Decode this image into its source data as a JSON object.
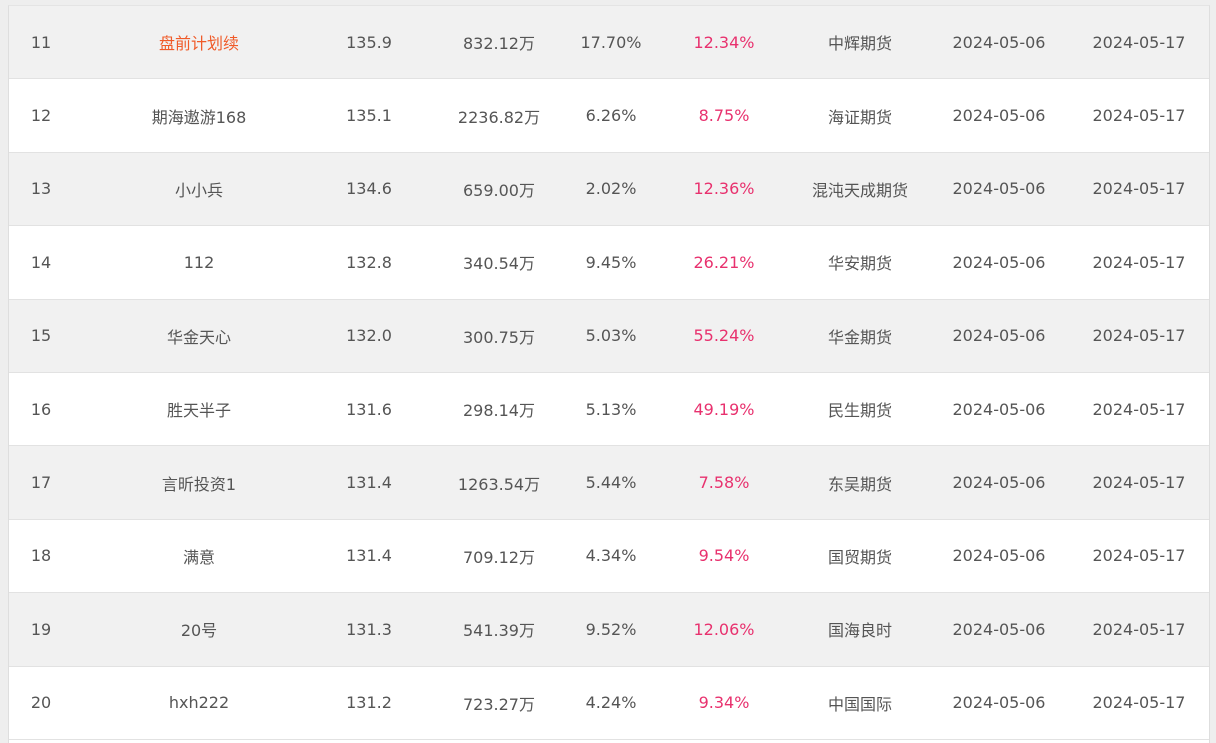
{
  "colors": {
    "return_pink": "#e8316e",
    "highlight_orange": "#f05a28",
    "text_gray": "#555555",
    "stripe_bg": "#f1f1f1"
  },
  "rows": [
    {
      "rank": "11",
      "name": "盘前计划续",
      "score": "135.9",
      "amount": "832.12万",
      "drawdown": "17.70%",
      "return": "12.34%",
      "broker": "中辉期货",
      "start": "2024-05-06",
      "end": "2024-05-17",
      "highlighted": true
    },
    {
      "rank": "12",
      "name": "期海遨游168",
      "score": "135.1",
      "amount": "2236.82万",
      "drawdown": "6.26%",
      "return": "8.75%",
      "broker": "海证期货",
      "start": "2024-05-06",
      "end": "2024-05-17"
    },
    {
      "rank": "13",
      "name": "小小兵",
      "score": "134.6",
      "amount": "659.00万",
      "drawdown": "2.02%",
      "return": "12.36%",
      "broker": "混沌天成期货",
      "start": "2024-05-06",
      "end": "2024-05-17"
    },
    {
      "rank": "14",
      "name": "112",
      "score": "132.8",
      "amount": "340.54万",
      "drawdown": "9.45%",
      "return": "26.21%",
      "broker": "华安期货",
      "start": "2024-05-06",
      "end": "2024-05-17"
    },
    {
      "rank": "15",
      "name": "华金天心",
      "score": "132.0",
      "amount": "300.75万",
      "drawdown": "5.03%",
      "return": "55.24%",
      "broker": "华金期货",
      "start": "2024-05-06",
      "end": "2024-05-17"
    },
    {
      "rank": "16",
      "name": "胜天半子",
      "score": "131.6",
      "amount": "298.14万",
      "drawdown": "5.13%",
      "return": "49.19%",
      "broker": "民生期货",
      "start": "2024-05-06",
      "end": "2024-05-17"
    },
    {
      "rank": "17",
      "name": "言昕投资1",
      "score": "131.4",
      "amount": "1263.54万",
      "drawdown": "5.44%",
      "return": "7.58%",
      "broker": "东吴期货",
      "start": "2024-05-06",
      "end": "2024-05-17"
    },
    {
      "rank": "18",
      "name": "满意",
      "score": "131.4",
      "amount": "709.12万",
      "drawdown": "4.34%",
      "return": "9.54%",
      "broker": "国贸期货",
      "start": "2024-05-06",
      "end": "2024-05-17"
    },
    {
      "rank": "19",
      "name": "20号",
      "score": "131.3",
      "amount": "541.39万",
      "drawdown": "9.52%",
      "return": "12.06%",
      "broker": "国海良时",
      "start": "2024-05-06",
      "end": "2024-05-17"
    },
    {
      "rank": "20",
      "name": "hxh222",
      "score": "131.2",
      "amount": "723.27万",
      "drawdown": "4.24%",
      "return": "9.34%",
      "broker": "中国国际",
      "start": "2024-05-06",
      "end": "2024-05-17"
    }
  ]
}
